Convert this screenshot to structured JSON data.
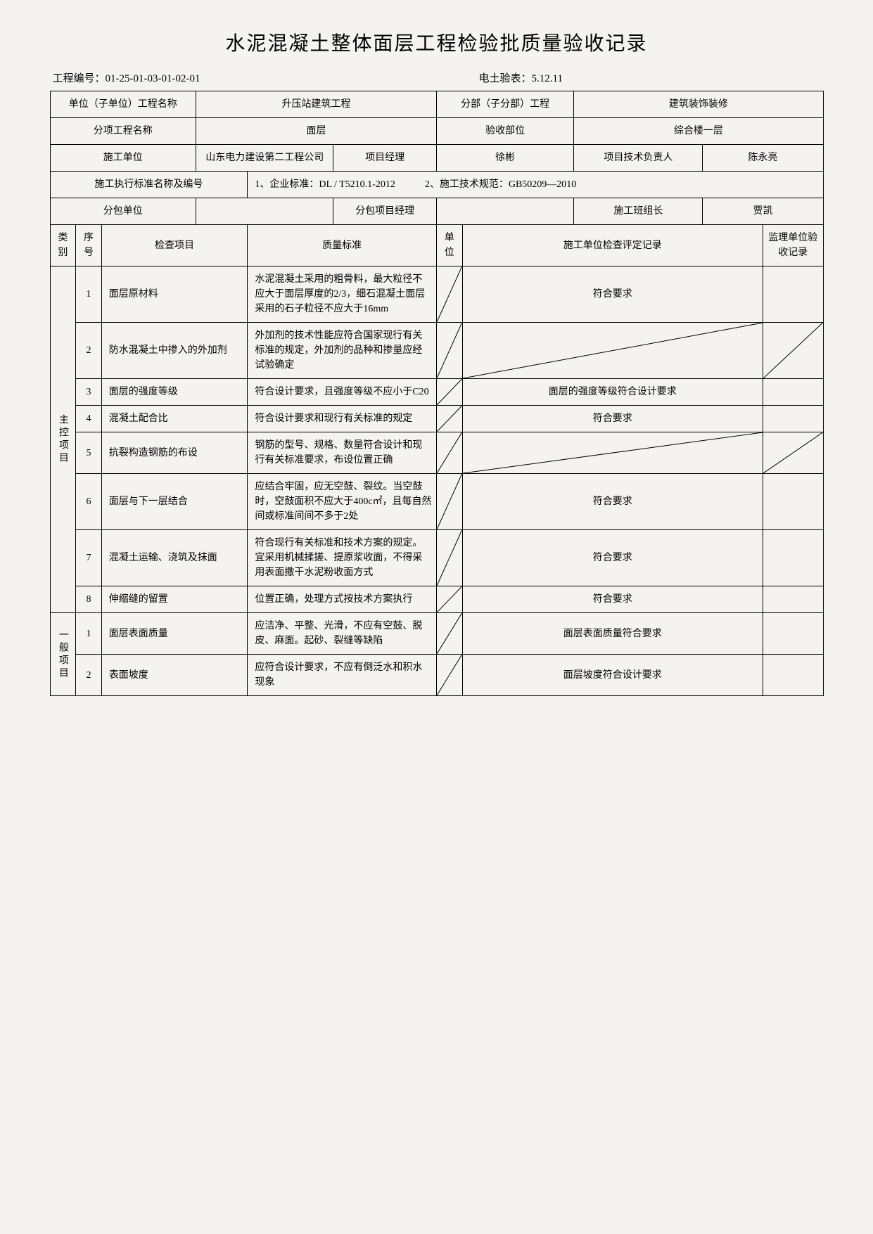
{
  "title": "水泥混凝土整体面层工程检验批质量验收记录",
  "header": {
    "project_no_label": "工程编号：",
    "project_no": "01-25-01-03-01-02-01",
    "form_no_label": "电土验表：",
    "form_no": "5.12.11"
  },
  "info": {
    "unit_label": "单位（子单位）工程名称",
    "unit_value": "升压站建筑工程",
    "subpart_label": "分部（子分部）工程",
    "subpart_value": "建筑装饰装修",
    "item_label": "分项工程名称",
    "item_value": "面层",
    "accept_part_label": "验收部位",
    "accept_part_value": "综合楼一层",
    "construct_unit_label": "施工单位",
    "construct_unit_value": "山东电力建设第二工程公司",
    "pm_label": "项目经理",
    "pm_value": "徐彬",
    "tech_leader_label": "项目技术负责人",
    "tech_leader_value": "陈永亮",
    "std_label": "施工执行标准名称及编号",
    "std_value": "1、企业标准：DL / T5210.1-2012　　　2、施工技术规范：GB50209—2010",
    "sub_unit_label": "分包单位",
    "sub_unit_value": "",
    "sub_pm_label": "分包项目经理",
    "sub_pm_value": "",
    "team_leader_label": "施工班组长",
    "team_leader_value": "贾凯"
  },
  "columns": {
    "category": "类别",
    "seq": "序号",
    "check_item": "检查项目",
    "quality_std": "质量标准",
    "unit": "单位",
    "construct_record": "施工单位检查评定记录",
    "supervise_record": "监理单位验收记录"
  },
  "categories": {
    "main": "主控项目",
    "general": "一般项目"
  },
  "rows": {
    "main": [
      {
        "seq": "1",
        "item": "面层原材料",
        "std": "水泥混凝土采用的粗骨料，最大粒径不应大于面层厚度的2/3，细石混凝土面层采用的石子粒径不应大于16mm",
        "unit_diag": true,
        "record": "符合要求",
        "super_diag": false
      },
      {
        "seq": "2",
        "item": "防水混凝土中掺入的外加剂",
        "std": "外加剂的技术性能应符合国家现行有关标准的规定，外加剂的品种和掺量应经试验确定",
        "unit_diag": true,
        "record": "",
        "record_diag": true,
        "super_diag": true
      },
      {
        "seq": "3",
        "item": "面层的强度等级",
        "std": "符合设计要求，且强度等级不应小于C20",
        "unit_diag": true,
        "record": "面层的强度等级符合设计要求",
        "super_diag": false
      },
      {
        "seq": "4",
        "item": "混凝土配合比",
        "std": "符合设计要求和现行有关标准的规定",
        "unit_diag": true,
        "record": "符合要求",
        "super_diag": false
      },
      {
        "seq": "5",
        "item": "抗裂构造钢筋的布设",
        "std": "钢筋的型号、规格、数量符合设计和现行有关标准要求，布设位置正确",
        "unit_diag": true,
        "record": "",
        "record_diag": true,
        "super_diag": true
      },
      {
        "seq": "6",
        "item": "面层与下一层结合",
        "std": "应结合牢固，应无空鼓、裂纹。当空鼓时，空鼓面积不应大于400c㎡，且每自然间或标准间间不多于2处",
        "unit_diag": true,
        "record": "符合要求",
        "super_diag": false
      },
      {
        "seq": "7",
        "item": "混凝土运输、浇筑及抹面",
        "std": "符合现行有关标准和技术方案的规定。宜采用机械揉搓、提原浆收面，不得采用表面撒干水泥粉收面方式",
        "unit_diag": true,
        "record": "符合要求",
        "super_diag": false
      },
      {
        "seq": "8",
        "item": "伸缩缝的留置",
        "std": "位置正确，处理方式按技术方案执行",
        "unit_diag": true,
        "record": "符合要求",
        "super_diag": false
      }
    ],
    "general": [
      {
        "seq": "1",
        "item": "面层表面质量",
        "std": "应洁净、平整、光滑，不应有空鼓、脱皮、麻面。起砂、裂缝等缺陷",
        "unit_diag": true,
        "record": "面层表面质量符合要求",
        "super_diag": false
      },
      {
        "seq": "2",
        "item": "表面坡度",
        "std": "应符合设计要求，不应有倒泛水和积水现象",
        "unit_diag": true,
        "record": "面层坡度符合设计要求",
        "super_diag": false
      }
    ]
  },
  "colors": {
    "bg": "#f5f3f0",
    "border": "#000000",
    "text": "#000000"
  }
}
